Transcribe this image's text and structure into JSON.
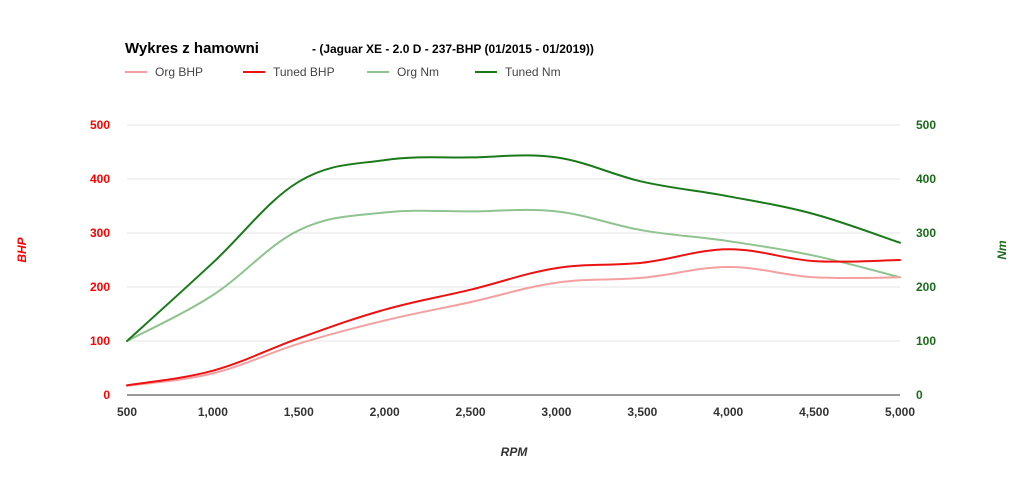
{
  "chart_data": {
    "type": "line",
    "title": "Wykres z hamowni",
    "subtitle": "- (Jaguar XE - 2.0 D - 237-BHP (01/2015 - 01/2019))",
    "xlabel": "RPM",
    "ylabel_left": "BHP",
    "ylabel_right": "Nm",
    "xlim": [
      500,
      5000
    ],
    "ylim_left": [
      0,
      500
    ],
    "ylim_right": [
      0,
      500
    ],
    "x_ticks": [
      "500",
      "1,000",
      "1,500",
      "2,000",
      "2,500",
      "3,000",
      "3,500",
      "4,000",
      "4,500",
      "5,000"
    ],
    "y_ticks_left": [
      "0",
      "100",
      "200",
      "300",
      "400",
      "500"
    ],
    "y_ticks_right": [
      "0",
      "100",
      "200",
      "300",
      "400",
      "500"
    ],
    "grid": true,
    "legend_position": "top-left",
    "x": [
      500,
      1000,
      1500,
      2000,
      2500,
      3000,
      3500,
      4000,
      4500,
      5000
    ],
    "series": [
      {
        "name": "Org BHP",
        "axis": "left",
        "color": "#f4a0a0",
        "values": [
          17,
          40,
          95,
          138,
          172,
          208,
          217,
          237,
          218,
          218
        ]
      },
      {
        "name": "Tuned BHP",
        "axis": "left",
        "color": "#ee1111",
        "values": [
          18,
          45,
          105,
          158,
          195,
          235,
          245,
          270,
          248,
          250
        ]
      },
      {
        "name": "Org Nm",
        "axis": "right",
        "color": "#8fc38f",
        "values": [
          100,
          185,
          305,
          338,
          340,
          340,
          305,
          285,
          258,
          218
        ]
      },
      {
        "name": "Tuned Nm",
        "axis": "right",
        "color": "#1a7a1a",
        "values": [
          100,
          245,
          395,
          435,
          440,
          440,
          395,
          368,
          335,
          282
        ]
      }
    ],
    "colors": {
      "left_axis": "#ff0000",
      "right_axis": "#1a6b1a",
      "x_axis": "#333333",
      "grid": "#e6e6e6"
    }
  }
}
